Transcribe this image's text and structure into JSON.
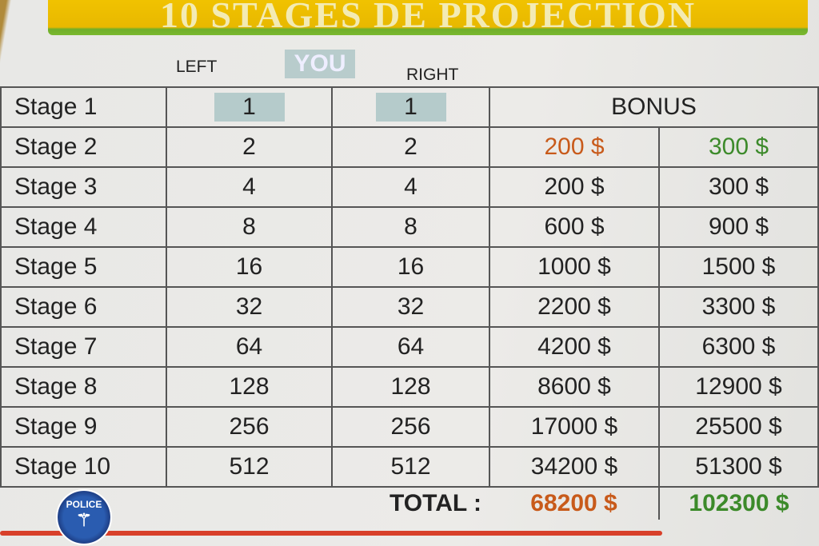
{
  "title": "10 STAGES DE PROJECTION",
  "headers": {
    "left": "LEFT",
    "you": "YOU",
    "right": "RIGHT",
    "bonus": "BONUS"
  },
  "rows": [
    {
      "stage": "Stage 1",
      "left": "1",
      "right": "1",
      "bonus1": "",
      "bonus2": ""
    },
    {
      "stage": "Stage 2",
      "left": "2",
      "right": "2",
      "bonus1": "200 $",
      "bonus2": "300 $"
    },
    {
      "stage": "Stage 3",
      "left": "4",
      "right": "4",
      "bonus1": "200 $",
      "bonus2": "300 $"
    },
    {
      "stage": "Stage 4",
      "left": "8",
      "right": "8",
      "bonus1": "600 $",
      "bonus2": "900 $"
    },
    {
      "stage": "Stage 5",
      "left": "16",
      "right": "16",
      "bonus1": "1000 $",
      "bonus2": "1500 $"
    },
    {
      "stage": "Stage 6",
      "left": "32",
      "right": "32",
      "bonus1": "2200 $",
      "bonus2": "3300 $"
    },
    {
      "stage": "Stage 7",
      "left": "64",
      "right": "64",
      "bonus1": "4200 $",
      "bonus2": "6300 $"
    },
    {
      "stage": "Stage 8",
      "left": "128",
      "right": "128",
      "bonus1": "8600 $",
      "bonus2": "12900 $"
    },
    {
      "stage": "Stage 9",
      "left": "256",
      "right": "256",
      "bonus1": "17000 $",
      "bonus2": "25500 $"
    },
    {
      "stage": "Stage 10",
      "left": "512",
      "right": "512",
      "bonus1": "34200 $",
      "bonus2": "51300 $"
    }
  ],
  "total": {
    "label": "TOTAL :",
    "bonus1": "68200 $",
    "bonus2": "102300 $"
  },
  "logo": {
    "text": "POLICE"
  },
  "colors": {
    "banner": "#f2c400",
    "orange": "#c85a1a",
    "green": "#3c8a2a",
    "red_line": "#d8402a"
  }
}
